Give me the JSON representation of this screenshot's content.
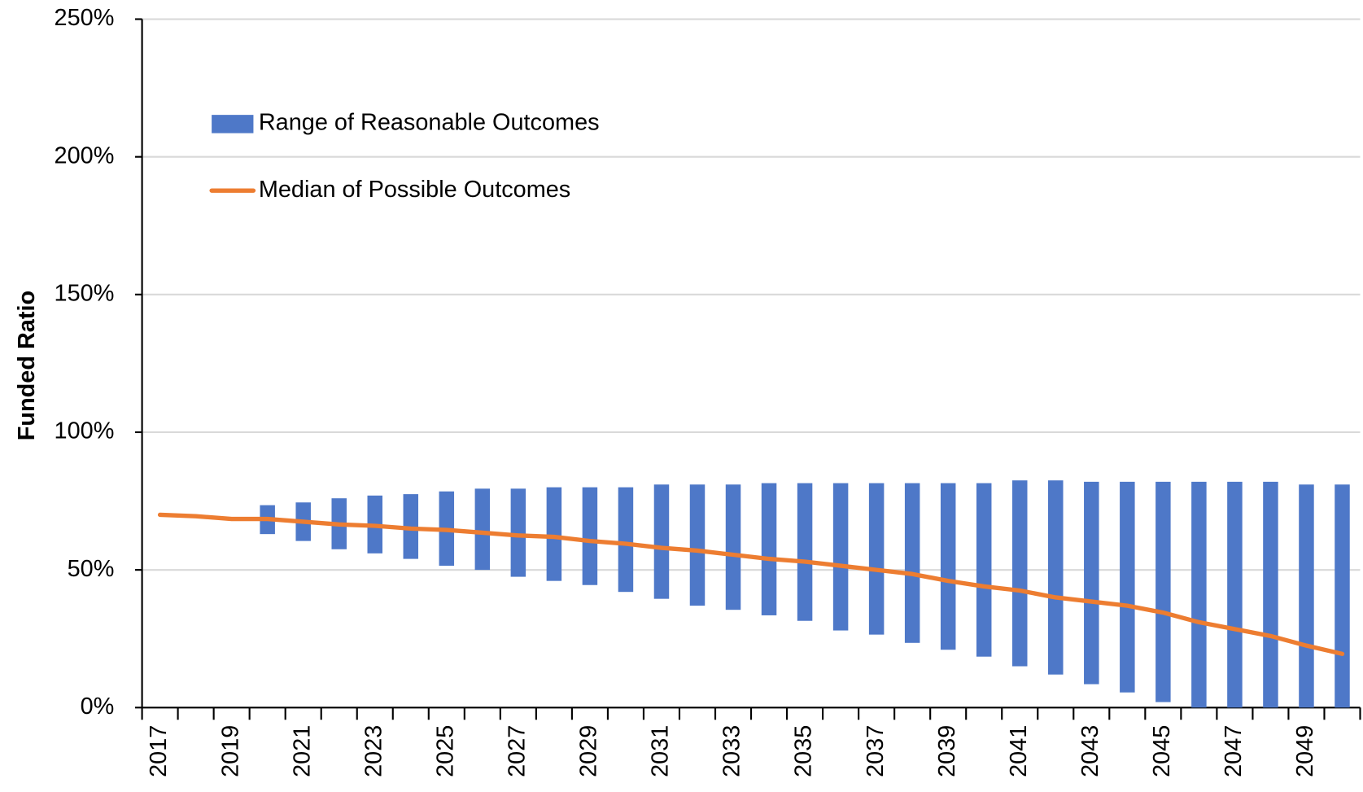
{
  "chart_data": {
    "type": "combo",
    "y_label": "Funded Ratio",
    "categories": [
      "2017",
      null,
      "2019",
      null,
      "2021",
      null,
      "2023",
      null,
      "2025",
      null,
      "2027",
      null,
      "2029",
      null,
      "2031",
      null,
      "2033",
      null,
      "2035",
      null,
      "2037",
      null,
      "2039",
      null,
      "2041",
      null,
      "2043",
      null,
      "2045",
      null,
      "2047",
      null,
      "2049",
      null
    ],
    "ylim": [
      0,
      250
    ],
    "yticks": [
      {
        "value": 0,
        "label": "0%"
      },
      {
        "value": 50,
        "label": "50%"
      },
      {
        "value": 100,
        "label": "100%"
      },
      {
        "value": 150,
        "label": "150%"
      },
      {
        "value": 200,
        "label": "200%"
      },
      {
        "value": 250,
        "label": "250%"
      }
    ],
    "grid": true,
    "legend": "upper left",
    "series": [
      {
        "name": "Range of Reasonable Outcomes",
        "type": "range",
        "color": "#4e78c8",
        "low": [
          null,
          null,
          null,
          63,
          60.5,
          57.5,
          56,
          54,
          51.5,
          50,
          47.5,
          46,
          44.5,
          42,
          39.5,
          37,
          35.5,
          33.5,
          31.5,
          28,
          26.5,
          23.5,
          21,
          18.5,
          15,
          12,
          8.5,
          5.5,
          2,
          0,
          0,
          0,
          0,
          0
        ],
        "high": [
          null,
          null,
          null,
          73.5,
          74.5,
          76,
          77,
          77.5,
          78.5,
          79.5,
          79.5,
          80,
          80,
          80,
          81,
          81,
          81,
          81.5,
          81.5,
          81.5,
          81.5,
          81.5,
          81.5,
          81.5,
          82.5,
          82.5,
          82,
          82,
          82,
          82,
          82,
          82,
          81,
          81
        ]
      },
      {
        "name": "Median of Possible Outcomes",
        "type": "line",
        "color": "#ed7d31",
        "values": [
          70,
          69.5,
          68.5,
          68.5,
          67.5,
          66.5,
          66,
          65,
          64.5,
          63.5,
          62.5,
          62,
          60.5,
          59.5,
          58,
          57,
          55.5,
          54,
          53,
          51.5,
          50,
          48.5,
          46,
          44,
          42.5,
          40,
          38.5,
          37,
          34.5,
          31,
          28.5,
          26,
          22.5,
          19.5
        ]
      }
    ]
  }
}
